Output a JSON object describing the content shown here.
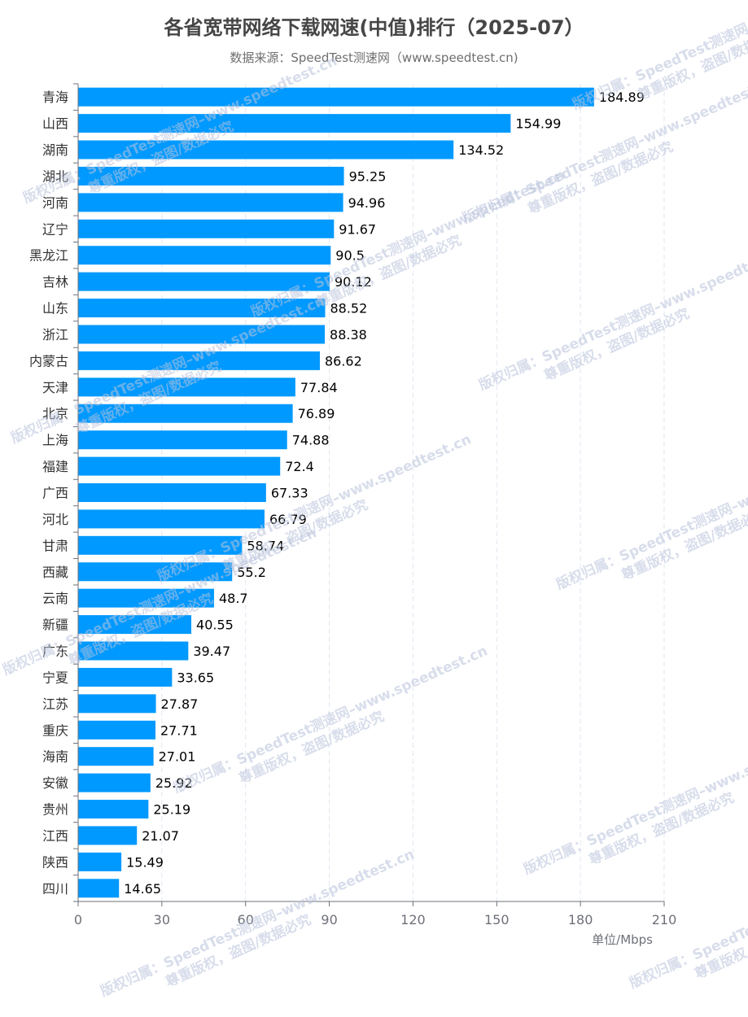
{
  "title": "各省宽带网络下载网速(中值)排行（2025-07）",
  "subtitle": "数据来源：SpeedTest测速网（www.speedtest.cn)",
  "watermark": {
    "line1": "版权归属：SpeedTest测速网–www.speedtest.cn",
    "line2": "尊重版权，盗图/数据必究"
  },
  "colors": {
    "bar": "#0099ff",
    "axis": "#6e7079",
    "grid": "#e0e6f1",
    "text": "#000000"
  },
  "chart_data": {
    "type": "bar",
    "orientation": "horizontal",
    "categories": [
      "青海",
      "山西",
      "湖南",
      "湖北",
      "河南",
      "辽宁",
      "黑龙江",
      "吉林",
      "山东",
      "浙江",
      "内蒙古",
      "天津",
      "北京",
      "上海",
      "福建",
      "广西",
      "河北",
      "甘肃",
      "西藏",
      "云南",
      "新疆",
      "广东",
      "宁夏",
      "江苏",
      "重庆",
      "海南",
      "安徽",
      "贵州",
      "江西",
      "陕西",
      "四川"
    ],
    "values": [
      184.89,
      154.99,
      134.52,
      95.25,
      94.96,
      91.67,
      90.5,
      90.12,
      88.52,
      88.38,
      86.62,
      77.84,
      76.89,
      74.88,
      72.4,
      67.33,
      66.79,
      58.74,
      55.2,
      48.7,
      40.55,
      39.47,
      33.65,
      27.87,
      27.71,
      27.01,
      25.92,
      25.19,
      21.07,
      15.49,
      14.65
    ],
    "value_labels": [
      "184.89",
      "154.99",
      "134.52",
      "95.25",
      "94.96",
      "91.67",
      "90.5",
      "90.12",
      "88.52",
      "88.38",
      "86.62",
      "77.84",
      "76.89",
      "74.88",
      "72.4",
      "67.33",
      "66.79",
      "58.74",
      "55.2",
      "48.7",
      "40.55",
      "39.47",
      "33.65",
      "27.87",
      "27.71",
      "27.01",
      "25.92",
      "25.19",
      "21.07",
      "15.49",
      "14.65"
    ],
    "xlim": [
      0,
      210
    ],
    "xticks": [
      0,
      30,
      60,
      90,
      120,
      150,
      180,
      210
    ],
    "xtick_labels": [
      "0",
      "30",
      "60",
      "90",
      "120",
      "150",
      "180",
      "210"
    ],
    "xlabel": "单位/Mbps",
    "grid": true
  }
}
